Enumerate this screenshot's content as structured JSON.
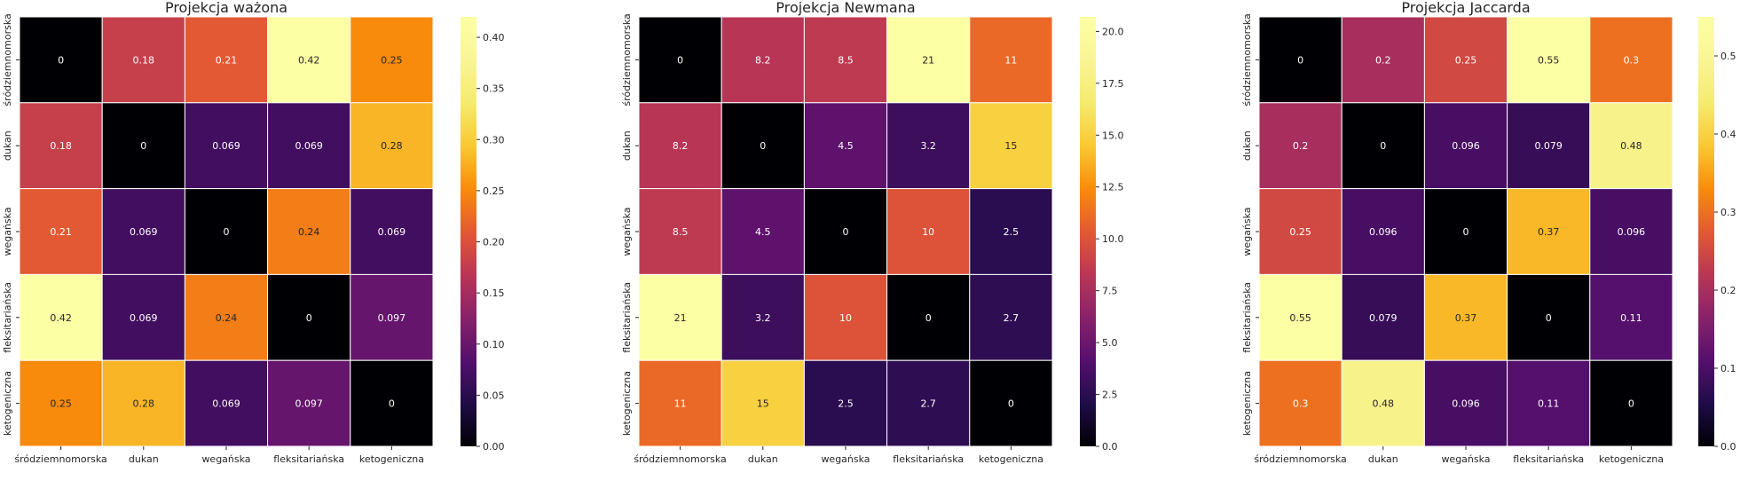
{
  "chart_data": [
    {
      "type": "heatmap",
      "title": "Projekcja ważona",
      "x_categories": [
        "śródziemnomorska",
        "dukan",
        "wegańska",
        "fleksitariańska",
        "ketogeniczna"
      ],
      "y_categories": [
        "śródziemnomorska",
        "dukan",
        "wegańska",
        "fleksitariańska",
        "ketogeniczna"
      ],
      "values": [
        [
          0,
          0.18,
          0.21,
          0.42,
          0.25
        ],
        [
          0.18,
          0,
          0.069,
          0.069,
          0.28
        ],
        [
          0.21,
          0.069,
          0,
          0.24,
          0.069
        ],
        [
          0.42,
          0.069,
          0.24,
          0,
          0.097
        ],
        [
          0.25,
          0.28,
          0.069,
          0.097,
          0
        ]
      ],
      "labels": [
        [
          "0",
          "0.18",
          "0.21",
          "0.42",
          "0.25"
        ],
        [
          "0.18",
          "0",
          "0.069",
          "0.069",
          "0.28"
        ],
        [
          "0.21",
          "0.069",
          "0",
          "0.24",
          "0.069"
        ],
        [
          "0.42",
          "0.069",
          "0.24",
          "0",
          "0.097"
        ],
        [
          "0.25",
          "0.28",
          "0.069",
          "0.097",
          "0"
        ]
      ],
      "colormap": "inferno",
      "vmin": 0,
      "vmax": 0.42,
      "colorbar_ticks": [
        "0.00",
        "0.05",
        "0.10",
        "0.15",
        "0.20",
        "0.25",
        "0.30",
        "0.35",
        "0.40"
      ],
      "colorbar_tick_values": [
        0,
        0.05,
        0.1,
        0.15,
        0.2,
        0.25,
        0.3,
        0.35,
        0.4
      ]
    },
    {
      "type": "heatmap",
      "title": "Projekcja Newmana",
      "x_categories": [
        "śródziemnomorska",
        "dukan",
        "wegańska",
        "fleksitariańska",
        "ketogeniczna"
      ],
      "y_categories": [
        "śródziemnomorska",
        "dukan",
        "wegańska",
        "fleksitariańska",
        "ketogeniczna"
      ],
      "values": [
        [
          0,
          8.2,
          8.5,
          21,
          11
        ],
        [
          8.2,
          0,
          4.5,
          3.2,
          15
        ],
        [
          8.5,
          4.5,
          0,
          10,
          2.5
        ],
        [
          21,
          3.2,
          10,
          0,
          2.7
        ],
        [
          11,
          15,
          2.5,
          2.7,
          0
        ]
      ],
      "labels": [
        [
          "0",
          "8.2",
          "8.5",
          "21",
          "11"
        ],
        [
          "8.2",
          "0",
          "4.5",
          "3.2",
          "15"
        ],
        [
          "8.5",
          "4.5",
          "0",
          "10",
          "2.5"
        ],
        [
          "21",
          "3.2",
          "10",
          "0",
          "2.7"
        ],
        [
          "11",
          "15",
          "2.5",
          "2.7",
          "0"
        ]
      ],
      "colormap": "inferno",
      "vmin": 0,
      "vmax": 20.7,
      "colorbar_ticks": [
        "0.0",
        "2.5",
        "5.0",
        "7.5",
        "10.0",
        "12.5",
        "15.0",
        "17.5",
        "20.0"
      ],
      "colorbar_tick_values": [
        0,
        2.5,
        5,
        7.5,
        10,
        12.5,
        15,
        17.5,
        20
      ]
    },
    {
      "type": "heatmap",
      "title": "Projekcja Jaccarda",
      "x_categories": [
        "śródziemnomorska",
        "dukan",
        "wegańska",
        "fleksitariańska",
        "ketogeniczna"
      ],
      "y_categories": [
        "śródziemnomorska",
        "dukan",
        "wegańska",
        "fleksitariańska",
        "ketogeniczna"
      ],
      "values": [
        [
          0,
          0.2,
          0.25,
          0.55,
          0.3
        ],
        [
          0.2,
          0,
          0.096,
          0.079,
          0.48
        ],
        [
          0.25,
          0.096,
          0,
          0.37,
          0.096
        ],
        [
          0.55,
          0.079,
          0.37,
          0,
          0.11
        ],
        [
          0.3,
          0.48,
          0.096,
          0.11,
          0
        ]
      ],
      "labels": [
        [
          "0",
          "0.2",
          "0.25",
          "0.55",
          "0.3"
        ],
        [
          "0.2",
          "0",
          "0.096",
          "0.079",
          "0.48"
        ],
        [
          "0.25",
          "0.096",
          "0",
          "0.37",
          "0.096"
        ],
        [
          "0.55",
          "0.079",
          "0.37",
          "0",
          "0.11"
        ],
        [
          "0.3",
          "0.48",
          "0.096",
          "0.11",
          "0"
        ]
      ],
      "colormap": "inferno",
      "vmin": 0,
      "vmax": 0.55,
      "colorbar_ticks": [
        "0.0",
        "0.1",
        "0.2",
        "0.3",
        "0.4",
        "0.5"
      ],
      "colorbar_tick_values": [
        0,
        0.1,
        0.2,
        0.3,
        0.4,
        0.5
      ]
    }
  ]
}
